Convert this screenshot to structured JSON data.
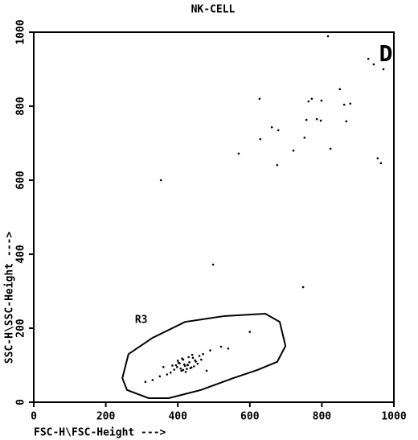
{
  "chart_data": {
    "type": "scatter",
    "title": "NK-CELL",
    "panel_label": "D",
    "x_label": "FSC-H\\FSC-Height --->",
    "y_label": "SSC-H\\SSC-Height --->",
    "xlim": [
      0,
      1000
    ],
    "ylim": [
      0,
      1000
    ],
    "xticks": [
      0,
      200,
      400,
      600,
      800,
      1000
    ],
    "yticks": [
      0,
      200,
      400,
      600,
      800,
      1000
    ],
    "color": "#000000",
    "gate": {
      "label": "R3",
      "x": [
        246,
        263,
        330,
        420,
        531,
        643,
        683,
        699,
        676,
        621,
        554,
        464,
        375,
        319,
        259
      ],
      "y": [
        65,
        130,
        174,
        217,
        233,
        239,
        217,
        152,
        109,
        87,
        65,
        33,
        11,
        11,
        33
      ]
    },
    "x": [
      817,
      929,
      944,
      971,
      627,
      772,
      799,
      763,
      850,
      862,
      879,
      757,
      786,
      797,
      868,
      661,
      679,
      629,
      752,
      721,
      824,
      569,
      676,
      955,
      964,
      353,
      748,
      498,
      420,
      405,
      435,
      390,
      450,
      415,
      428,
      398,
      442,
      410,
      380,
      460,
      425,
      432,
      400,
      418,
      445,
      370,
      470,
      412,
      438,
      395,
      455,
      422,
      408,
      385,
      465,
      430,
      415,
      402,
      448,
      427,
      350,
      490,
      520,
      330,
      540,
      600,
      360,
      480,
      310,
      440
    ],
    "y": [
      989,
      928,
      913,
      900,
      820,
      820,
      815,
      813,
      846,
      804,
      807,
      763,
      765,
      761,
      759,
      743,
      735,
      711,
      715,
      680,
      685,
      672,
      641,
      659,
      646,
      600,
      311,
      372,
      98,
      105,
      92,
      88,
      110,
      115,
      100,
      95,
      120,
      85,
      80,
      125,
      90,
      108,
      112,
      102,
      97,
      75,
      130,
      118,
      94,
      100,
      104,
      82,
      91,
      99,
      115,
      122,
      87,
      107,
      113,
      101,
      70,
      140,
      150,
      60,
      145,
      190,
      95,
      85,
      55,
      128
    ]
  }
}
